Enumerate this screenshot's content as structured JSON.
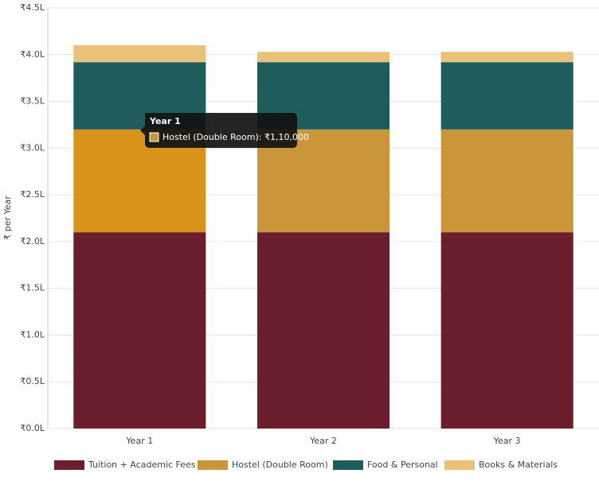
{
  "chart_data": {
    "type": "stacked_bar",
    "y_label": "₹ per Year",
    "categories": [
      "Year 1",
      "Year 2",
      "Year 3"
    ],
    "series": [
      {
        "name": "Tuition + Academic Fees",
        "color": "#6b1f2e",
        "values": [
          2.1,
          2.1,
          2.1
        ]
      },
      {
        "name": "Hostel (Double Room)",
        "color": "#c9973a",
        "values": [
          1.1,
          1.1,
          1.1
        ]
      },
      {
        "name": "Food & Personal",
        "color": "#1f5c5c",
        "values": [
          0.72,
          0.72,
          0.72
        ]
      },
      {
        "name": "Books & Materials",
        "color": "#e8c27a",
        "values": [
          0.18,
          0.11,
          0.11
        ]
      }
    ],
    "ylim": [
      0,
      4.5
    ],
    "yticks": [
      {
        "value": 0,
        "label": "₹0.0L"
      },
      {
        "value": 0.5,
        "label": "₹0.5L"
      },
      {
        "value": 1,
        "label": "₹1.0L"
      },
      {
        "value": 1.5,
        "label": "₹1.5L"
      },
      {
        "value": 2,
        "label": "₹2.0L"
      },
      {
        "value": 2.5,
        "label": "₹2.5L"
      },
      {
        "value": 3,
        "label": "₹3.0L"
      },
      {
        "value": 3.5,
        "label": "₹3.5L"
      },
      {
        "value": 4,
        "label": "₹4.0L"
      },
      {
        "value": 4.5,
        "label": "₹4.5L"
      }
    ],
    "grid": true,
    "highlight_color": "#d9931a",
    "tooltip": {
      "text": "Hostel (Double Room): ₹1,10,000"
    }
  }
}
